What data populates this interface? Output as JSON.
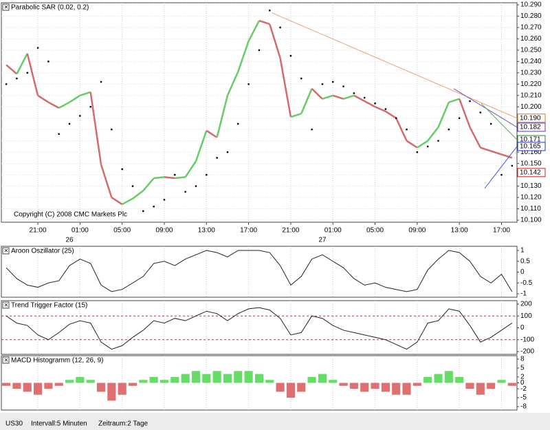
{
  "chart_data": [
    {
      "type": "line",
      "title": "Parabolic SAR (0.02, 0.2)",
      "annotation": "Copyright (C) 2008 CMC Markets Plc",
      "x": [
        -6,
        -5,
        -4,
        -3,
        -2,
        -1,
        0,
        1,
        2,
        3,
        4,
        5,
        6,
        7,
        8,
        9,
        10,
        11,
        12,
        13,
        14,
        15,
        16,
        17,
        18,
        19,
        20,
        21,
        22,
        23,
        24,
        25,
        26,
        27,
        28,
        29,
        30,
        31,
        32,
        33,
        34,
        35,
        36,
        37,
        38,
        39,
        40,
        41,
        42
      ],
      "series": [
        {
          "up_color": "#66cc66",
          "down_color": "#d46a6a",
          "values": [
            10.237,
            10.229,
            10.247,
            10.21,
            10.204,
            10.199,
            10.204,
            10.21,
            10.213,
            10.149,
            10.12,
            10.114,
            10.119,
            10.126,
            10.137,
            10.138,
            10.137,
            10.138,
            10.152,
            10.179,
            10.173,
            10.21,
            10.231,
            10.258,
            10.276,
            10.273,
            10.243,
            10.191,
            10.194,
            10.216,
            10.207,
            10.21,
            10.207,
            10.21,
            10.205,
            10.2,
            10.196,
            10.19,
            10.17,
            10.164,
            10.17,
            10.182,
            10.204,
            10.207,
            10.182,
            10.164,
            10.161,
            10.158,
            10.155
          ]
        },
        {
          "type": "scatter",
          "color": "#000000",
          "values": [
            10.22,
            10.225,
            10.23,
            10.252,
            10.24,
            10.176,
            10.185,
            10.192,
            10.2,
            10.222,
            10.18,
            10.145,
            10.13,
            10.108,
            10.112,
            10.118,
            10.14,
            10.125,
            10.13,
            10.14,
            10.155,
            10.16,
            10.185,
            10.22,
            10.25,
            10.285,
            10.27,
            10.245,
            10.225,
            10.18,
            10.22,
            10.222,
            10.218,
            10.212,
            10.208,
            10.203,
            10.198,
            10.19,
            10.18,
            10.16,
            10.165,
            10.17,
            10.18,
            10.19,
            10.205,
            10.195,
            10.185,
            10.14,
            10.148
          ]
        }
      ],
      "trendlines": [
        {
          "color": "#f0a070",
          "x": [
            19.2,
            42.47
          ],
          "values": [
            10.283,
            10.19
          ]
        },
        {
          "color": "#7755bb",
          "x": [
            36.47,
            42.47
          ],
          "values": [
            10.216,
            10.182
          ]
        },
        {
          "color": "#55aa55",
          "x": [
            39.08,
            42.47
          ],
          "values": [
            10.203,
            10.171
          ]
        },
        {
          "color": "#4455dd",
          "x": [
            39.4,
            42.47
          ],
          "values": [
            10.128,
            10.165
          ]
        }
      ],
      "price_labels": [
        {
          "value": 10.19,
          "label": "10.190",
          "color": "#e07020"
        },
        {
          "value": 10.182,
          "label": "10.182",
          "color": "#6633aa"
        },
        {
          "value": 10.171,
          "label": "10.171",
          "color": "#228822"
        },
        {
          "value": 10.165,
          "label": "10.165",
          "color": "#2233cc"
        },
        {
          "value": 10.142,
          "label": "10.142",
          "color": "#cc2222"
        }
      ],
      "xlim": [
        -6.07,
        42.47
      ],
      "ylim": [
        10.1,
        10.29
      ],
      "xticks": [
        {
          "value": -3,
          "label": "21:00"
        },
        {
          "value": 1,
          "label": "01:00"
        },
        {
          "value": 5,
          "label": "05:00"
        },
        {
          "value": 9,
          "label": "09:00"
        },
        {
          "value": 13,
          "label": "13:00"
        },
        {
          "value": 17,
          "label": "17:00"
        },
        {
          "value": 21,
          "label": "21:00"
        },
        {
          "value": 25,
          "label": "01:00"
        },
        {
          "value": 29,
          "label": "05:00"
        },
        {
          "value": 33,
          "label": "09:00"
        },
        {
          "value": 37,
          "label": "13:00"
        },
        {
          "value": 41,
          "label": "17:00"
        }
      ],
      "day_labels": [
        {
          "value": 0,
          "label": "26"
        },
        {
          "value": 24,
          "label": "27"
        }
      ],
      "yticks": [
        {
          "value": 10.29,
          "label": "10.290"
        },
        {
          "value": 10.28,
          "label": "10.280"
        },
        {
          "value": 10.27,
          "label": "10.270"
        },
        {
          "value": 10.26,
          "label": "10.260"
        },
        {
          "value": 10.25,
          "label": "10.250"
        },
        {
          "value": 10.24,
          "label": "10.240"
        },
        {
          "value": 10.23,
          "label": "10.230"
        },
        {
          "value": 10.22,
          "label": "10.220"
        },
        {
          "value": 10.21,
          "label": "10.210"
        },
        {
          "value": 10.2,
          "label": "10.200"
        },
        {
          "value": 10.19,
          "label": "10.190"
        },
        {
          "value": 10.18,
          "label": "10.180"
        },
        {
          "value": 10.17,
          "label": "10.170"
        },
        {
          "value": 10.16,
          "label": "10.160"
        },
        {
          "value": 10.15,
          "label": "10.150"
        },
        {
          "value": 10.14,
          "label": "10.140"
        },
        {
          "value": 10.13,
          "label": "10.130"
        },
        {
          "value": 10.12,
          "label": "10.120"
        },
        {
          "value": 10.11,
          "label": "10.110"
        },
        {
          "value": 10.1,
          "label": "10.100"
        }
      ],
      "grid": true
    },
    {
      "type": "line",
      "title": "Aroon Oszillator (25)",
      "x": [
        -6,
        -5,
        -4,
        -3,
        -2,
        -1,
        0,
        1,
        2,
        3,
        4,
        5,
        6,
        7,
        8,
        9,
        10,
        11,
        12,
        13,
        14,
        15,
        16,
        17,
        18,
        19,
        20,
        21,
        22,
        23,
        24,
        25,
        26,
        27,
        28,
        29,
        30,
        31,
        32,
        33,
        34,
        35,
        36,
        37,
        38,
        39,
        40,
        41,
        42
      ],
      "series": [
        {
          "color": "#222222",
          "values": [
            0.2,
            -0.3,
            -0.6,
            -0.7,
            -0.5,
            -0.4,
            0.3,
            0.6,
            0.4,
            -0.6,
            -0.9,
            -0.8,
            -0.5,
            -0.2,
            0.4,
            0.5,
            0.3,
            0.6,
            0.8,
            1,
            0.9,
            0.7,
            1,
            1,
            1,
            0.9,
            0.3,
            -0.6,
            -0.2,
            0.6,
            0.8,
            0.5,
            0.2,
            -0.3,
            -0.6,
            -0.5,
            -0.7,
            -0.8,
            -0.9,
            -0.8,
            0.1,
            0.6,
            1,
            0.9,
            0.5,
            -0.2,
            -0.5,
            -0.1,
            -0.9
          ]
        }
      ],
      "xlim": [
        -6.07,
        42.47
      ],
      "ylim": [
        -1,
        1
      ],
      "yticks": [
        1,
        0.5,
        0,
        -0.5,
        -1
      ]
    },
    {
      "type": "line",
      "title": "Trend Trigger Factor (15)",
      "x": [
        -6,
        -5,
        -4,
        -3,
        -2,
        -1,
        0,
        1,
        2,
        3,
        4,
        5,
        6,
        7,
        8,
        9,
        10,
        11,
        12,
        13,
        14,
        15,
        16,
        17,
        18,
        19,
        20,
        21,
        22,
        23,
        24,
        25,
        26,
        27,
        28,
        29,
        30,
        31,
        32,
        33,
        34,
        35,
        36,
        37,
        38,
        39,
        40,
        41,
        42
      ],
      "series": [
        {
          "color": "#222222",
          "values": [
            100,
            40,
            20,
            -60,
            -100,
            -40,
            30,
            60,
            40,
            -120,
            -180,
            -150,
            -80,
            -20,
            60,
            40,
            80,
            60,
            100,
            140,
            120,
            60,
            120,
            160,
            170,
            150,
            80,
            -60,
            -40,
            100,
            80,
            20,
            -20,
            -40,
            -60,
            -80,
            -100,
            -140,
            -180,
            -120,
            40,
            60,
            160,
            140,
            20,
            -120,
            -80,
            -20,
            40
          ]
        }
      ],
      "levels": [
        100,
        -100
      ],
      "level_color": "#dd2222",
      "xlim": [
        -6.07,
        42.47
      ],
      "ylim": [
        -200,
        200
      ],
      "yticks": [
        200,
        100,
        0,
        -100,
        -200
      ]
    },
    {
      "type": "bar",
      "title": "MACD Histogramm (12, 26, 9)",
      "title_color": "#33cc33",
      "x": [
        -6,
        -5,
        -4,
        -3,
        -2,
        -1,
        0,
        1,
        2,
        3,
        4,
        5,
        6,
        7,
        8,
        9,
        10,
        11,
        12,
        13,
        14,
        15,
        16,
        17,
        18,
        19,
        20,
        21,
        22,
        23,
        24,
        25,
        26,
        27,
        28,
        29,
        30,
        31,
        32,
        33,
        34,
        35,
        36,
        37,
        38,
        39,
        40,
        41,
        42
      ],
      "series": [
        {
          "up_color": "#66dd66",
          "down_color": "#e07070",
          "values": [
            -1,
            -2,
            -3,
            -4,
            -2,
            -1,
            1,
            2,
            1,
            -3,
            -6,
            -4,
            -1,
            1,
            2,
            1,
            2,
            3,
            4,
            3,
            4,
            3,
            4,
            4,
            3,
            1,
            -3,
            -5,
            -3,
            2,
            3,
            1,
            -1,
            -2,
            -3,
            -2,
            -3,
            -4,
            -4,
            -1,
            2,
            3,
            4,
            2,
            -2,
            -4,
            -2,
            1,
            -1
          ]
        }
      ],
      "xlim": [
        -6.07,
        42.47
      ],
      "ylim": [
        -8,
        8
      ],
      "yticks": [
        8,
        5,
        2,
        0,
        -2,
        -5,
        -8
      ]
    }
  ],
  "footer": {
    "symbol": "US30",
    "interval": "Intervall:5 Minuten",
    "range": "Zeitraum:2 Tage"
  }
}
